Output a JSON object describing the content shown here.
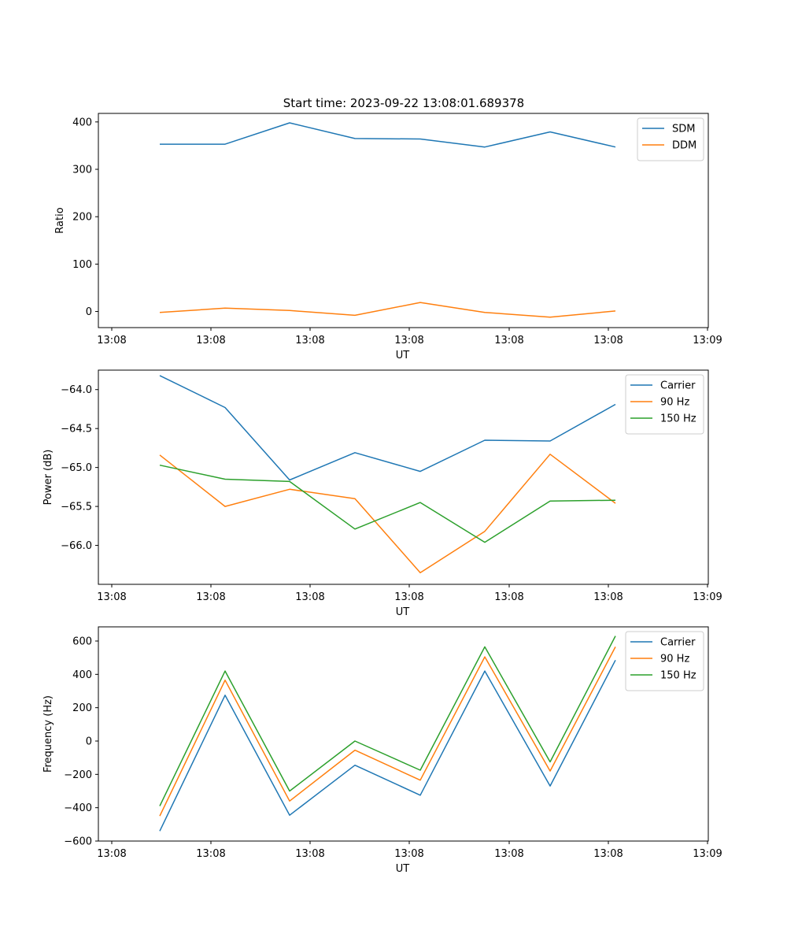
{
  "title": "Start time: 2023-09-22 13:08:01.689378",
  "colors": {
    "blue": "#1f77b4",
    "orange": "#ff7f0e",
    "green": "#2ca02c"
  },
  "chart_data": [
    {
      "type": "line",
      "xlabel": "UT",
      "ylabel": "Ratio",
      "x_ticks": [
        "13:08",
        "13:08",
        "13:08",
        "13:08",
        "13:08",
        "13:08",
        "13:08"
      ],
      "x_tick_last": "13:09",
      "y_ticks": [
        "0",
        "100",
        "200",
        "300",
        "400"
      ],
      "y_tick_values": [
        0,
        100,
        200,
        300,
        400
      ],
      "ylim": [
        -34,
        418
      ],
      "legend": "top-right",
      "series": [
        {
          "name": "SDM",
          "color": "#1f77b4",
          "values": [
            353,
            353,
            398,
            365,
            364,
            347,
            379,
            347
          ]
        },
        {
          "name": "DDM",
          "color": "#ff7f0e",
          "values": [
            -2,
            7,
            2,
            -8,
            19,
            -2,
            -12,
            1
          ]
        }
      ]
    },
    {
      "type": "line",
      "xlabel": "UT",
      "ylabel": "Power (dB)",
      "x_ticks": [
        "13:08",
        "13:08",
        "13:08",
        "13:08",
        "13:08",
        "13:08",
        "13:08"
      ],
      "x_tick_last": "13:09",
      "y_ticks": [
        "−64.0",
        "−64.5",
        "−65.0",
        "−65.5",
        "−66.0"
      ],
      "y_tick_values": [
        -64.0,
        -64.5,
        -65.0,
        -65.5,
        -66.0
      ],
      "ylim": [
        -66.5,
        -63.75
      ],
      "legend": "top-right",
      "series": [
        {
          "name": "Carrier",
          "color": "#1f77b4",
          "values": [
            -63.82,
            -64.23,
            -65.16,
            -64.81,
            -65.05,
            -64.65,
            -64.66,
            -64.19
          ]
        },
        {
          "name": "90 Hz",
          "color": "#ff7f0e",
          "values": [
            -64.84,
            -65.5,
            -65.28,
            -65.4,
            -66.35,
            -65.82,
            -64.83,
            -65.46
          ]
        },
        {
          "name": "150 Hz",
          "color": "#2ca02c",
          "values": [
            -64.97,
            -65.15,
            -65.18,
            -65.79,
            -65.45,
            -65.96,
            -65.43,
            -65.42
          ]
        }
      ]
    },
    {
      "type": "line",
      "xlabel": "UT",
      "ylabel": "Frequency (Hz)",
      "x_ticks": [
        "13:08",
        "13:08",
        "13:08",
        "13:08",
        "13:08",
        "13:08",
        "13:08"
      ],
      "x_tick_last": "13:09",
      "y_ticks": [
        "−600",
        "−400",
        "−200",
        "0",
        "200",
        "400",
        "600"
      ],
      "y_tick_values": [
        -600,
        -400,
        -200,
        0,
        200,
        400,
        600
      ],
      "ylim": [
        -600,
        685
      ],
      "legend": "top-right",
      "series": [
        {
          "name": "Carrier",
          "color": "#1f77b4",
          "values": [
            -540,
            275,
            -445,
            -145,
            -325,
            420,
            -270,
            485
          ]
        },
        {
          "name": "90 Hz",
          "color": "#ff7f0e",
          "values": [
            -450,
            365,
            -360,
            -55,
            -235,
            505,
            -180,
            565
          ]
        },
        {
          "name": "150 Hz",
          "color": "#2ca02c",
          "values": [
            -390,
            420,
            -300,
            0,
            -175,
            565,
            -125,
            630
          ]
        }
      ]
    }
  ]
}
